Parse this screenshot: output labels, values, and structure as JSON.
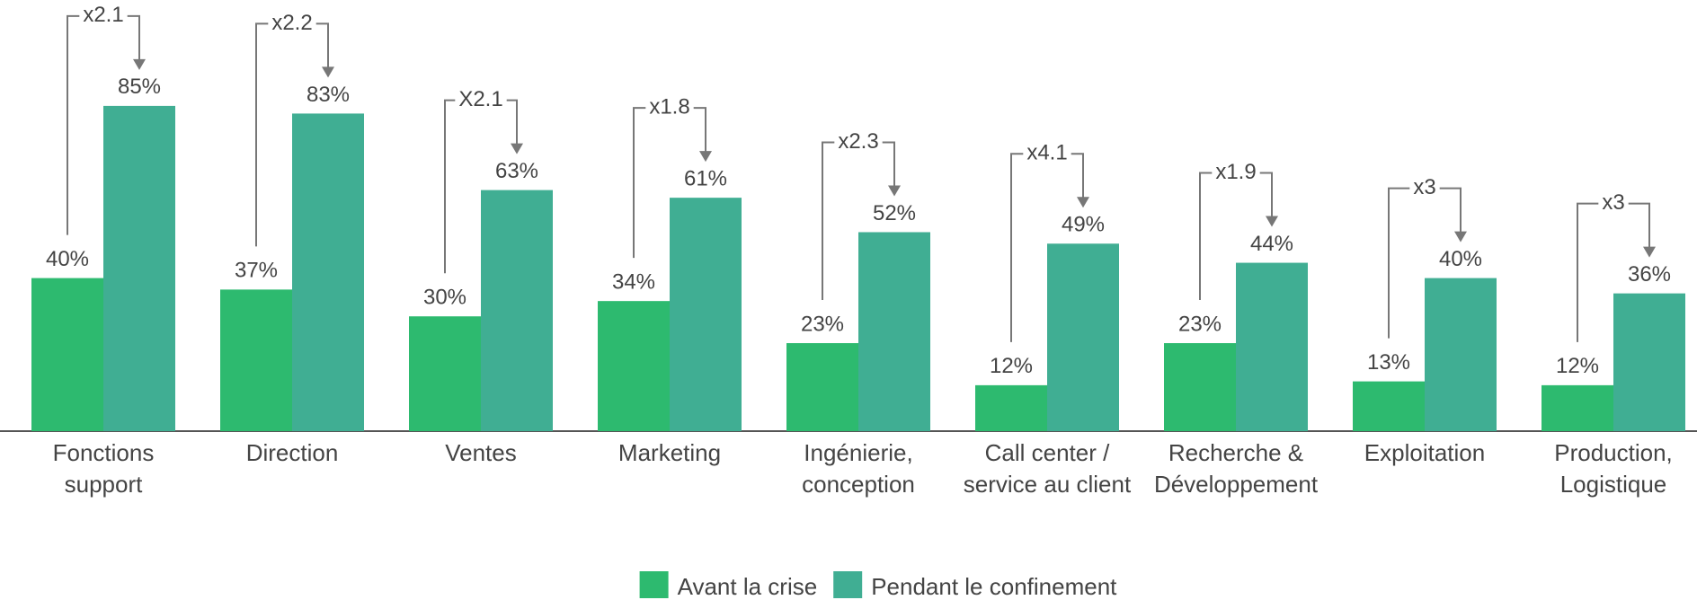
{
  "chart_data": {
    "type": "bar",
    "categories": [
      [
        "Fonctions",
        "support"
      ],
      [
        "Direction"
      ],
      [
        "Ventes"
      ],
      [
        "Marketing"
      ],
      [
        "Ingénierie,",
        "conception"
      ],
      [
        "Call center /",
        "service au client"
      ],
      [
        "Recherche &",
        "Développement"
      ],
      [
        "Exploitation"
      ],
      [
        "Production,",
        "Logistique"
      ]
    ],
    "series": [
      {
        "name": "Avant la crise",
        "color": "#2dba6f",
        "values": [
          40,
          37,
          30,
          34,
          23,
          12,
          23,
          13,
          12
        ],
        "value_labels": [
          "40%",
          "37%",
          "30%",
          "34%",
          "23%",
          "12%",
          "23%",
          "13%",
          "12%"
        ]
      },
      {
        "name": "Pendant le confinement",
        "color": "#40ae93",
        "values": [
          85,
          83,
          63,
          61,
          52,
          49,
          44,
          40,
          36
        ],
        "value_labels": [
          "85%",
          "83%",
          "63%",
          "61%",
          "52%",
          "49%",
          "44%",
          "40%",
          "36%"
        ]
      }
    ],
    "annotations": [
      "x2.1",
      "x2.2",
      "X2.1",
      "x1.8",
      "x2.3",
      "x4.1",
      "x1.9",
      "x3",
      "x3"
    ],
    "legend": "bottom"
  }
}
